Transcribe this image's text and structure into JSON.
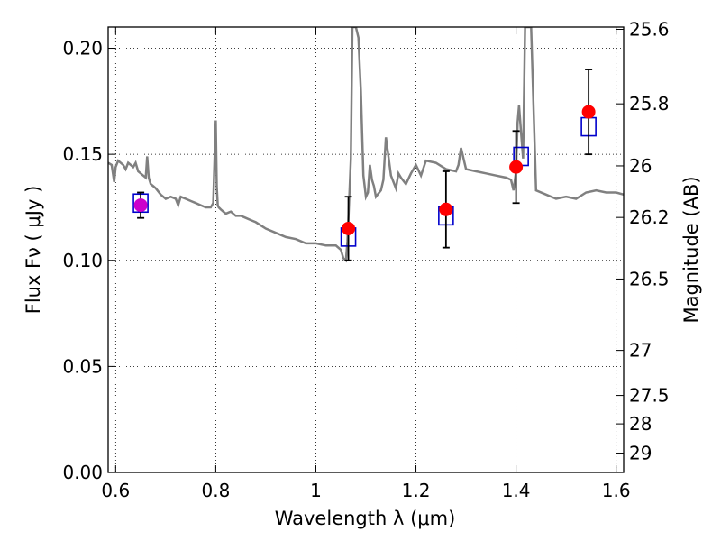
{
  "chart_data": {
    "type": "scatter",
    "xlabel": "Wavelength  λ (μm)",
    "ylabel": "Flux  Fν ( μJy )",
    "y2label": "Magnitude (AB)",
    "xlim": [
      0.585,
      1.615
    ],
    "ylim": [
      0.0,
      0.21
    ],
    "x_ticks": [
      "0.6",
      "0.8",
      "1",
      "1.2",
      "1.4",
      "1.6"
    ],
    "x_tick_values": [
      0.6,
      0.8,
      1.0,
      1.2,
      1.4,
      1.6
    ],
    "y_ticks": [
      "0.00",
      "0.05",
      "0.10",
      "0.15",
      "0.20"
    ],
    "y_tick_values": [
      0.0,
      0.05,
      0.1,
      0.15,
      0.2
    ],
    "y2_ticks": [
      "25.6",
      "25.8",
      "26",
      "26.2",
      "26.5",
      "27",
      "27.5",
      "28",
      "29"
    ],
    "y2_tick_values": [
      25.6,
      25.8,
      26.0,
      26.2,
      26.5,
      27.0,
      27.5,
      28.0,
      29.0
    ],
    "grid": true,
    "colors": {
      "model": "#808080",
      "observed": "#ff0000",
      "model_band": "#0000cc",
      "errorbar": "#000000",
      "overlap": "#cc00cc"
    },
    "series": [
      {
        "type": "line",
        "x": [
          0.585,
          0.592,
          0.597,
          0.6,
          0.605,
          0.61,
          0.615,
          0.62,
          0.625,
          0.63,
          0.635,
          0.64,
          0.645,
          0.65,
          0.655,
          0.66,
          0.663,
          0.666,
          0.67,
          0.675,
          0.68,
          0.69,
          0.7,
          0.71,
          0.72,
          0.725,
          0.73,
          0.74,
          0.75,
          0.76,
          0.77,
          0.78,
          0.79,
          0.795,
          0.8,
          0.802,
          0.804,
          0.806,
          0.81,
          0.82,
          0.83,
          0.84,
          0.85,
          0.86,
          0.87,
          0.88,
          0.9,
          0.92,
          0.94,
          0.96,
          0.98,
          1.0,
          1.02,
          1.04,
          1.05,
          1.055,
          1.06,
          1.063,
          1.066,
          1.07,
          1.073,
          1.076,
          1.08,
          1.085,
          1.09,
          1.095,
          1.1,
          1.104,
          1.108,
          1.112,
          1.116,
          1.12,
          1.13,
          1.135,
          1.14,
          1.15,
          1.16,
          1.165,
          1.17,
          1.18,
          1.19,
          1.2,
          1.21,
          1.22,
          1.24,
          1.26,
          1.28,
          1.285,
          1.29,
          1.3,
          1.32,
          1.34,
          1.36,
          1.38,
          1.39,
          1.395,
          1.4,
          1.403,
          1.406,
          1.41,
          1.414,
          1.418,
          1.421,
          1.425,
          1.43,
          1.44,
          1.46,
          1.48,
          1.5,
          1.52,
          1.54,
          1.56,
          1.58,
          1.6,
          1.615
        ],
        "y": [
          0.146,
          0.145,
          0.137,
          0.144,
          0.147,
          0.146,
          0.145,
          0.143,
          0.146,
          0.145,
          0.144,
          0.146,
          0.142,
          0.141,
          0.14,
          0.139,
          0.149,
          0.139,
          0.136,
          0.135,
          0.134,
          0.131,
          0.129,
          0.13,
          0.129,
          0.126,
          0.13,
          0.129,
          0.128,
          0.127,
          0.126,
          0.125,
          0.125,
          0.127,
          0.166,
          0.135,
          0.126,
          0.125,
          0.124,
          0.122,
          0.123,
          0.121,
          0.121,
          0.12,
          0.119,
          0.118,
          0.115,
          0.113,
          0.111,
          0.11,
          0.108,
          0.108,
          0.107,
          0.107,
          0.105,
          0.101,
          0.1,
          0.109,
          0.125,
          0.148,
          0.21,
          0.21,
          0.21,
          0.205,
          0.18,
          0.14,
          0.13,
          0.132,
          0.145,
          0.138,
          0.135,
          0.13,
          0.133,
          0.138,
          0.158,
          0.14,
          0.134,
          0.141,
          0.139,
          0.136,
          0.141,
          0.145,
          0.14,
          0.147,
          0.146,
          0.143,
          0.142,
          0.145,
          0.153,
          0.143,
          0.142,
          0.141,
          0.14,
          0.139,
          0.138,
          0.133,
          0.142,
          0.165,
          0.173,
          0.16,
          0.148,
          0.21,
          0.21,
          0.21,
          0.21,
          0.133,
          0.131,
          0.129,
          0.13,
          0.129,
          0.132,
          0.133,
          0.132,
          0.132,
          0.131
        ]
      },
      {
        "type": "errorbar",
        "x": [
          0.65,
          1.065,
          1.26,
          1.4,
          1.545
        ],
        "y": [
          0.126,
          0.115,
          0.124,
          0.144,
          0.17
        ],
        "yerr_low": [
          0.006,
          0.015,
          0.018,
          0.017,
          0.02
        ],
        "yerr_high": [
          0.006,
          0.015,
          0.018,
          0.017,
          0.02
        ]
      },
      {
        "type": "box",
        "x": [
          0.65,
          1.065,
          1.26,
          1.41,
          1.545
        ],
        "y": [
          0.127,
          0.111,
          0.121,
          0.149,
          0.163
        ]
      }
    ]
  }
}
